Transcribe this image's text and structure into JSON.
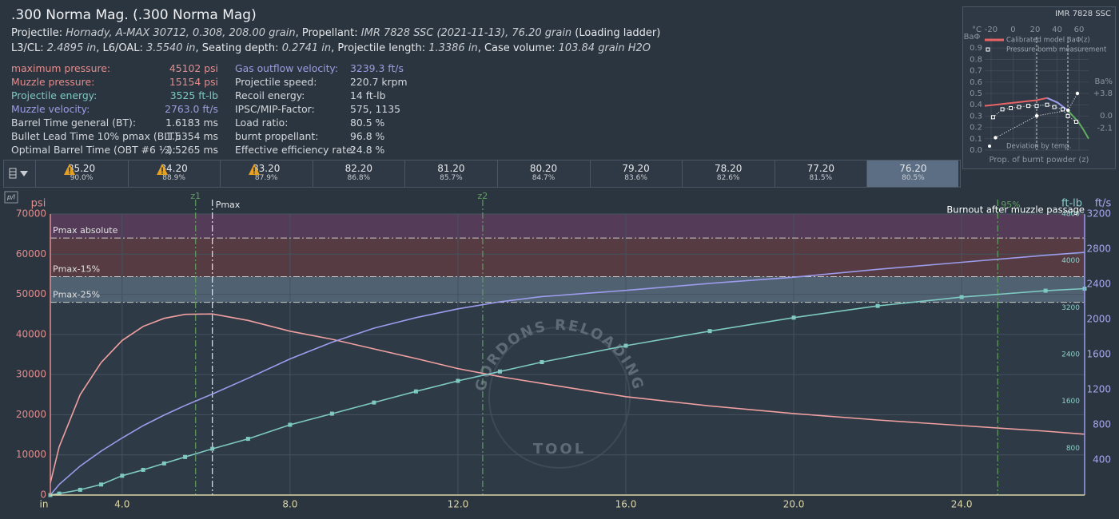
{
  "header": {
    "title": ".300 Norma Mag. (.300 Norma Mag)",
    "line2": [
      {
        "text": "Projectile: ",
        "italic": false
      },
      {
        "text": "Hornady, A-MAX 30712, 0.308, 208.00 grain",
        "italic": true
      },
      {
        "text": ", Propellant: ",
        "italic": false
      },
      {
        "text": "IMR 7828 SSC (2021-11-13), 76.20 grain",
        "italic": true
      },
      {
        "text": " (Loading ladder)",
        "italic": false
      }
    ],
    "line3": [
      {
        "text": "L3/CL: ",
        "italic": false
      },
      {
        "text": "2.4895 in",
        "italic": true
      },
      {
        "text": ", L6/OAL: ",
        "italic": false
      },
      {
        "text": "3.5540 in",
        "italic": true
      },
      {
        "text": ", Seating depth: ",
        "italic": false
      },
      {
        "text": "0.2741 in",
        "italic": true
      },
      {
        "text": ", Projectile length: ",
        "italic": false
      },
      {
        "text": "1.3386 in",
        "italic": true
      },
      {
        "text": ", Case volume: ",
        "italic": false
      },
      {
        "text": "103.84 grain H2O",
        "italic": true
      }
    ]
  },
  "info": {
    "left": [
      {
        "label": "maximum pressure:",
        "value": "45102 psi",
        "color": "#e48c8c"
      },
      {
        "label": "Muzzle pressure:",
        "value": "15154 psi",
        "color": "#e48c8c"
      },
      {
        "label": "Projectile energy:",
        "value": "3525 ft-lb",
        "color": "#7ec8c0"
      },
      {
        "label": "Muzzle velocity:",
        "value": "2763.0 ft/s",
        "color": "#9c9ce4"
      },
      {
        "label": "Barrel Time general (BT):",
        "value": "1.6183 ms",
        "color": "#d4d8dc"
      },
      {
        "label": "Bullet Lead Time 10% pmax (BLT):",
        "value": "1.5354 ms",
        "color": "#d4d8dc"
      },
      {
        "label": "Optimal Barrel Time (OBT #6 ½):",
        "value": "1.5265 ms",
        "color": "#d4d8dc"
      }
    ],
    "right": [
      {
        "label": "Gas outflow velocity:",
        "value": "3239.3 ft/s",
        "color": "#9c9ce4"
      },
      {
        "label": "Projectile speed:",
        "value": "220.7 krpm",
        "color": "#d4d8dc"
      },
      {
        "label": "Recoil energy:",
        "value": "14 ft-lb",
        "color": "#d4d8dc"
      },
      {
        "label": "IPSC/MIP-Factor:",
        "value": "575, 1135",
        "color": "#d4d8dc"
      },
      {
        "label": "Load ratio:",
        "value": "80.5 %",
        "color": "#d4d8dc"
      },
      {
        "label": "burnt propellant:",
        "value": "96.8 %",
        "color": "#d4d8dc"
      },
      {
        "label": "Effective efficiency rate:",
        "value": "24.8 %",
        "color": "#d4d8dc"
      }
    ]
  },
  "ladder": [
    {
      "charge": "85.20",
      "percent": "90.0%",
      "warning": true,
      "selected": false
    },
    {
      "charge": "84.20",
      "percent": "88.9%",
      "warning": true,
      "selected": false
    },
    {
      "charge": "83.20",
      "percent": "87.9%",
      "warning": true,
      "selected": false
    },
    {
      "charge": "82.20",
      "percent": "86.8%",
      "warning": false,
      "selected": false
    },
    {
      "charge": "81.20",
      "percent": "85.7%",
      "warning": false,
      "selected": false
    },
    {
      "charge": "80.20",
      "percent": "84.7%",
      "warning": false,
      "selected": false
    },
    {
      "charge": "79.20",
      "percent": "83.6%",
      "warning": false,
      "selected": false
    },
    {
      "charge": "78.20",
      "percent": "82.6%",
      "warning": false,
      "selected": false
    },
    {
      "charge": "77.20",
      "percent": "81.5%",
      "warning": false,
      "selected": false
    },
    {
      "charge": "76.20",
      "percent": "80.5%",
      "warning": false,
      "selected": true
    }
  ],
  "chart_data": [
    {
      "type": "line",
      "button": "p/l",
      "ylabel": "psi",
      "y2label": "ft/s",
      "y3label": "ft-lb",
      "xlabel": "in",
      "annotation": "Burnout after muzzle passage",
      "watermark": [
        "GORDONS RELOADING",
        "TOOL"
      ],
      "xlim": [
        2.29,
        26.93
      ],
      "xticks": [
        {
          "value": 4,
          "label": "4.0"
        },
        {
          "value": 8,
          "label": "8.0"
        },
        {
          "value": 12,
          "label": "12.0"
        },
        {
          "value": 16,
          "label": "16.0"
        },
        {
          "value": 20,
          "label": "20.0"
        },
        {
          "value": 24,
          "label": "24.0"
        }
      ],
      "ylim": [
        0,
        70000
      ],
      "yticks": [
        0,
        10000,
        20000,
        30000,
        40000,
        50000,
        60000,
        70000
      ],
      "y2lim": [
        0,
        3200
      ],
      "y2ticks": [
        400,
        800,
        1200,
        1600,
        2000,
        2400,
        2800,
        3200
      ],
      "y3lim": [
        0,
        4800
      ],
      "y3ticks": [
        800,
        1600,
        2400,
        3200,
        4000,
        4800
      ],
      "grid": true,
      "bands": [
        {
          "from": 64000,
          "to": 70000,
          "color": "#5b3d5c"
        },
        {
          "from": 54400,
          "to": 64000,
          "color": "#5e3c42"
        },
        {
          "from": 48000,
          "to": 54400,
          "color": "#56697a"
        }
      ],
      "limits": [
        {
          "label": "Pmax absolute",
          "value": 64000
        },
        {
          "label": "Pmax-15%",
          "value": 54400
        },
        {
          "label": "Pmax-25%",
          "value": 48000
        }
      ],
      "markers": [
        {
          "label": "z1",
          "x": 5.75,
          "color": "#5f9e5f"
        },
        {
          "label": "Pmax",
          "x": 6.15,
          "color": "#e8e8e8"
        },
        {
          "label": "z2",
          "x": 12.59,
          "color": "#5f9e5f"
        },
        {
          "label": "95%",
          "x": 24.86,
          "color": "#5f9e5f"
        }
      ],
      "x": [
        2.29,
        2.5,
        3,
        3.5,
        4,
        4.5,
        5,
        5.5,
        6.15,
        7,
        8,
        9,
        10,
        11,
        12,
        13,
        14,
        16,
        18,
        20,
        22,
        24,
        26,
        26.93
      ],
      "series": [
        {
          "axis": "y",
          "color": "#f0a0a0",
          "values": [
            3000,
            12000,
            25000,
            33000,
            38500,
            42000,
            44000,
            45000,
            45102,
            43500,
            40800,
            38800,
            36400,
            34000,
            31500,
            29500,
            27800,
            24500,
            22200,
            20300,
            18700,
            17300,
            15900,
            15154
          ]
        },
        {
          "axis": "y2",
          "color": "#9c9cec",
          "values": [
            0,
            120,
            330,
            500,
            650,
            790,
            910,
            1020,
            1150,
            1330,
            1550,
            1740,
            1900,
            2020,
            2120,
            2200,
            2260,
            2330,
            2410,
            2480,
            2570,
            2650,
            2730,
            2763
          ]
        },
        {
          "axis": "y3",
          "color": "#7ecac2",
          "markers": "square",
          "values": [
            0,
            25,
            90,
            180,
            330,
            430,
            540,
            650,
            790,
            960,
            1200,
            1390,
            1580,
            1770,
            1950,
            2110,
            2270,
            2550,
            2800,
            3030,
            3230,
            3380,
            3490,
            3525
          ]
        }
      ]
    },
    {
      "type": "line",
      "title": "IMR 7828 SSC",
      "ylabel": "BaΦ",
      "x2label": "°C",
      "y2label": "Ba%",
      "xlabel": "Prop. of burnt powder (z)",
      "xlim": [
        0,
        1
      ],
      "ylim": [
        0,
        1
      ],
      "yticks": [
        {
          "value": 0,
          "label": "0.0"
        },
        {
          "value": 0.1,
          "label": "0.1"
        },
        {
          "value": 0.2,
          "label": "0.2"
        },
        {
          "value": 0.3,
          "label": "0.3"
        },
        {
          "value": 0.4,
          "label": "0.4"
        },
        {
          "value": 0.5,
          "label": "0.5"
        },
        {
          "value": 0.6,
          "label": "0.6"
        },
        {
          "value": 0.7,
          "label": "0.7"
        },
        {
          "value": 0.8,
          "label": "0.8"
        },
        {
          "value": 0.9,
          "label": "0.9"
        }
      ],
      "x2lim": [
        -25.8,
        68.7
      ],
      "x2ticks": [
        -20,
        0,
        20,
        40,
        60
      ],
      "y2lim": [
        -5.8,
        13.4
      ],
      "y2ticks": [
        {
          "value": 3.8,
          "label": "+3.8"
        },
        {
          "value": 0,
          "label": "0.0"
        },
        -2.1
      ],
      "vlines": [
        0.5,
        0.8
      ],
      "series": [
        {
          "name": "Calibrated model BaΦ(z)",
          "color": "#e86464",
          "x": [
            0,
            0.1,
            0.2,
            0.3,
            0.4,
            0.5,
            0.6
          ],
          "values": [
            0.39,
            0.4,
            0.41,
            0.42,
            0.43,
            0.44,
            0.46
          ]
        },
        {
          "color": "#9c9cec",
          "x": [
            0.6,
            0.7,
            0.8
          ],
          "values": [
            0.46,
            0.42,
            0.35
          ]
        },
        {
          "color": "#5fae5f",
          "x": [
            0.8,
            0.85,
            0.9,
            0.95,
            1
          ],
          "values": [
            0.35,
            0.3,
            0.25,
            0.18,
            0.1
          ]
        },
        {
          "name": "Pressure bomb measurement",
          "color": "#ffffff",
          "markers": "square",
          "x": [
            0.08,
            0.17,
            0.25,
            0.33,
            0.42,
            0.5,
            0.6,
            0.67,
            0.75,
            0.8,
            0.88
          ],
          "values": [
            0.29,
            0.36,
            0.37,
            0.38,
            0.39,
            0.39,
            0.4,
            0.38,
            0.36,
            0.3,
            0.25
          ]
        },
        {
          "name": "Deviation by temp.",
          "color": "#ffffff",
          "markers": "circle",
          "axis": "y2",
          "xaxis": "x2",
          "x": [
            -16,
            21.5,
            50,
            58.5
          ],
          "values": [
            -3.7,
            0,
            0.95,
            3.8
          ]
        }
      ]
    }
  ]
}
